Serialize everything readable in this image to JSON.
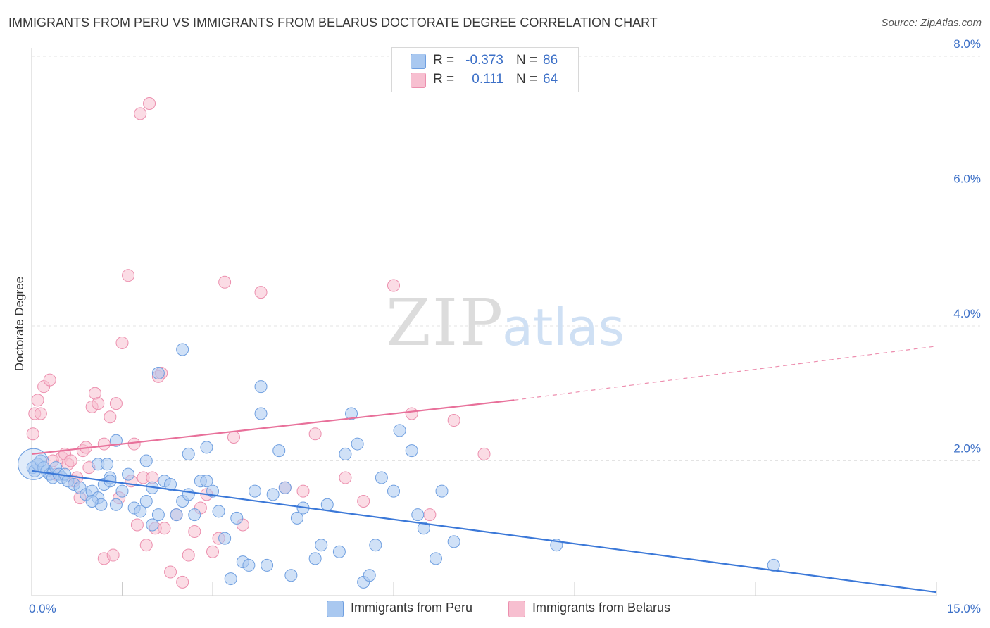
{
  "header": {
    "title": "IMMIGRANTS FROM PERU VS IMMIGRANTS FROM BELARUS DOCTORATE DEGREE CORRELATION CHART",
    "source": "Source: ZipAtlas.com"
  },
  "watermark": {
    "zip": "ZIP",
    "atlas": "atlas"
  },
  "legend": {
    "rows": [
      {
        "r_label": "R =",
        "r_value": "-0.373",
        "n_label": "N =",
        "n_value": "86",
        "color": "#a9c8f0",
        "border": "#6f9fe0"
      },
      {
        "r_label": "R =",
        "r_value": "0.111",
        "n_label": "N =",
        "n_value": "64",
        "color": "#f7bfd0",
        "border": "#ec8fae"
      }
    ]
  },
  "bottom_legend": [
    {
      "label": "Immigrants from Peru",
      "color": "#a9c8f0",
      "border": "#6f9fe0"
    },
    {
      "label": "Immigrants from Belarus",
      "color": "#f7bfd0",
      "border": "#ec8fae"
    }
  ],
  "chart_data": {
    "type": "scatter",
    "title": "IMMIGRANTS FROM PERU VS IMMIGRANTS FROM BELARUS DOCTORATE DEGREE CORRELATION CHART",
    "xlabel": "",
    "ylabel": "Doctorate Degree",
    "xlim": [
      0,
      15
    ],
    "ylim": [
      0,
      8
    ],
    "x_tick_labels": [
      {
        "value": 0,
        "label": "0.0%"
      },
      {
        "value": 15,
        "label": "15.0%"
      }
    ],
    "y_tick_labels": [
      {
        "value": 2,
        "label": "2.0%"
      },
      {
        "value": 4,
        "label": "4.0%"
      },
      {
        "value": 6,
        "label": "6.0%"
      },
      {
        "value": 8,
        "label": "8.0%"
      }
    ],
    "grid": true,
    "legend_position": "top-center",
    "colors": {
      "peru": "#3b78d8",
      "belarus": "#e8709a",
      "peru_fill": "#a9c8f0",
      "belarus_fill": "#f7bfd0"
    },
    "series": [
      {
        "name": "Immigrants from Peru",
        "R": -0.373,
        "N": 86,
        "trend": {
          "x": [
            0,
            15
          ],
          "y": [
            1.85,
            0.05
          ]
        },
        "points": [
          [
            0.02,
            1.9
          ],
          [
            0.05,
            1.85
          ],
          [
            0.1,
            1.95
          ],
          [
            0.15,
            2.0
          ],
          [
            0.2,
            1.9
          ],
          [
            0.25,
            1.85
          ],
          [
            0.3,
            1.8
          ],
          [
            0.35,
            1.75
          ],
          [
            0.4,
            1.9
          ],
          [
            0.45,
            1.8
          ],
          [
            0.5,
            1.75
          ],
          [
            0.55,
            1.8
          ],
          [
            0.6,
            1.7
          ],
          [
            0.7,
            1.65
          ],
          [
            0.8,
            1.6
          ],
          [
            0.9,
            1.5
          ],
          [
            1.0,
            1.55
          ],
          [
            1.1,
            1.45
          ],
          [
            1.15,
            1.35
          ],
          [
            1.2,
            1.65
          ],
          [
            1.3,
            1.75
          ],
          [
            1.4,
            1.35
          ],
          [
            1.5,
            1.55
          ],
          [
            1.6,
            1.8
          ],
          [
            1.7,
            1.3
          ],
          [
            1.8,
            1.25
          ],
          [
            1.9,
            1.4
          ],
          [
            2.0,
            1.6
          ],
          [
            2.1,
            1.2
          ],
          [
            2.2,
            1.7
          ],
          [
            2.3,
            1.65
          ],
          [
            2.4,
            1.2
          ],
          [
            2.5,
            1.4
          ],
          [
            2.6,
            1.5
          ],
          [
            2.7,
            1.2
          ],
          [
            2.8,
            1.7
          ],
          [
            2.9,
            1.7
          ],
          [
            1.0,
            1.4
          ],
          [
            1.1,
            1.95
          ],
          [
            1.25,
            1.95
          ],
          [
            1.4,
            2.3
          ],
          [
            1.9,
            2.0
          ],
          [
            2.1,
            3.3
          ],
          [
            2.5,
            3.65
          ],
          [
            2.6,
            2.1
          ],
          [
            2.9,
            2.2
          ],
          [
            3.0,
            1.55
          ],
          [
            3.1,
            1.25
          ],
          [
            3.2,
            0.85
          ],
          [
            3.3,
            0.25
          ],
          [
            3.4,
            1.15
          ],
          [
            3.5,
            0.5
          ],
          [
            3.6,
            0.45
          ],
          [
            3.7,
            1.55
          ],
          [
            3.9,
            0.45
          ],
          [
            4.0,
            1.5
          ],
          [
            4.1,
            2.15
          ],
          [
            4.2,
            1.6
          ],
          [
            4.3,
            0.3
          ],
          [
            4.4,
            1.15
          ],
          [
            4.5,
            1.3
          ],
          [
            4.7,
            0.55
          ],
          [
            4.8,
            0.75
          ],
          [
            4.9,
            1.35
          ],
          [
            5.1,
            0.65
          ],
          [
            5.2,
            2.1
          ],
          [
            5.4,
            2.25
          ],
          [
            5.5,
            0.2
          ],
          [
            5.6,
            0.3
          ],
          [
            5.7,
            0.75
          ],
          [
            5.8,
            1.75
          ],
          [
            6.0,
            1.55
          ],
          [
            6.1,
            2.45
          ],
          [
            6.3,
            2.15
          ],
          [
            6.4,
            1.2
          ],
          [
            6.5,
            1.0
          ],
          [
            6.7,
            0.55
          ],
          [
            6.8,
            1.55
          ],
          [
            7.0,
            0.8
          ],
          [
            8.7,
            0.75
          ],
          [
            12.3,
            0.45
          ],
          [
            3.8,
            2.7
          ],
          [
            3.8,
            3.1
          ],
          [
            5.3,
            2.7
          ],
          [
            1.3,
            1.7
          ],
          [
            2.0,
            1.05
          ]
        ]
      },
      {
        "name": "Immigrants from Belarus",
        "R": 0.111,
        "N": 64,
        "trend": {
          "x": [
            0,
            8
          ],
          "y": [
            2.1,
            2.9
          ]
        },
        "trend_dashed": {
          "x": [
            8,
            15
          ],
          "y": [
            2.9,
            3.7
          ]
        },
        "points": [
          [
            0.02,
            2.4
          ],
          [
            0.05,
            2.7
          ],
          [
            0.1,
            2.9
          ],
          [
            0.15,
            2.7
          ],
          [
            0.2,
            3.1
          ],
          [
            0.3,
            3.2
          ],
          [
            0.35,
            2.0
          ],
          [
            0.4,
            1.8
          ],
          [
            0.5,
            2.05
          ],
          [
            0.55,
            2.1
          ],
          [
            0.6,
            1.95
          ],
          [
            0.65,
            2.0
          ],
          [
            0.7,
            1.7
          ],
          [
            0.75,
            1.75
          ],
          [
            0.8,
            1.45
          ],
          [
            0.85,
            2.15
          ],
          [
            0.9,
            2.2
          ],
          [
            0.95,
            1.9
          ],
          [
            1.0,
            2.8
          ],
          [
            1.05,
            3.0
          ],
          [
            1.1,
            2.85
          ],
          [
            1.2,
            2.25
          ],
          [
            1.3,
            2.65
          ],
          [
            1.4,
            2.85
          ],
          [
            1.5,
            3.75
          ],
          [
            1.6,
            4.75
          ],
          [
            1.65,
            1.7
          ],
          [
            1.7,
            2.25
          ],
          [
            1.75,
            1.05
          ],
          [
            1.8,
            7.15
          ],
          [
            1.85,
            1.75
          ],
          [
            1.9,
            0.75
          ],
          [
            1.95,
            7.3
          ],
          [
            2.0,
            1.75
          ],
          [
            2.1,
            3.25
          ],
          [
            2.2,
            1.0
          ],
          [
            2.3,
            0.35
          ],
          [
            2.4,
            1.2
          ],
          [
            2.5,
            0.2
          ],
          [
            2.6,
            0.6
          ],
          [
            2.7,
            0.95
          ],
          [
            2.8,
            1.3
          ],
          [
            2.9,
            1.5
          ],
          [
            3.0,
            0.65
          ],
          [
            3.1,
            0.85
          ],
          [
            3.2,
            4.65
          ],
          [
            3.35,
            2.35
          ],
          [
            3.5,
            1.05
          ],
          [
            3.8,
            4.5
          ],
          [
            4.2,
            1.6
          ],
          [
            4.5,
            1.55
          ],
          [
            4.7,
            2.4
          ],
          [
            5.2,
            1.75
          ],
          [
            5.5,
            1.4
          ],
          [
            6.0,
            4.6
          ],
          [
            6.3,
            2.7
          ],
          [
            6.6,
            1.2
          ],
          [
            7.0,
            2.6
          ],
          [
            7.5,
            2.1
          ],
          [
            2.05,
            1.0
          ],
          [
            1.2,
            0.55
          ],
          [
            1.35,
            0.6
          ],
          [
            1.45,
            1.45
          ],
          [
            2.15,
            3.3
          ]
        ]
      }
    ]
  }
}
